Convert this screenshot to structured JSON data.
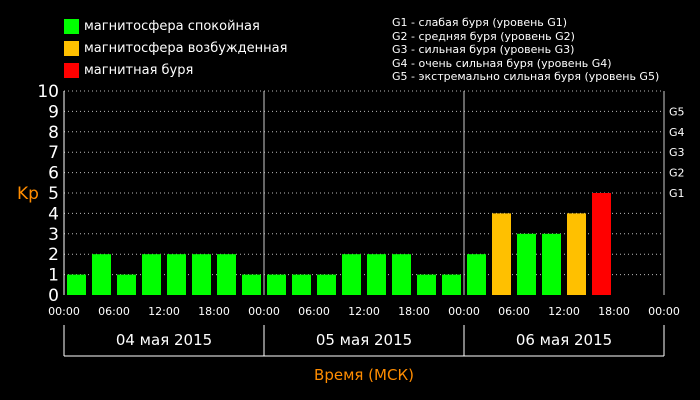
{
  "legend": [
    {
      "label": "магнитосфера спокойная",
      "color": "#00ff00"
    },
    {
      "label": "магнитосфера возбужденная",
      "color": "#ffc000"
    },
    {
      "label": "магнитная буря",
      "color": "#ff0000"
    }
  ],
  "storm_levels": [
    "G1 - слабая буря (уровень G1)",
    "G2 - средняя буря (уровень G2)",
    "G3 - сильная буря (уровень G3)",
    "G4 - очень сильная буря (уровень G4)",
    "G5 - экстремально сильная буря (уровень G5)"
  ],
  "colors": {
    "quiet": "#00ff00",
    "active": "#ffc000",
    "storm": "#ff0000",
    "axis_label": "#ff8c00",
    "background": "#000000",
    "foreground": "#ffffff"
  },
  "chart_data": {
    "type": "bar",
    "ylabel": "Kp",
    "xlabel": "Время (МСК)",
    "ylim": [
      0,
      10
    ],
    "yticks": [
      "0",
      "1",
      "2",
      "3",
      "4",
      "5",
      "6",
      "7",
      "8",
      "9",
      "10"
    ],
    "right_labels": [
      {
        "label": "G1",
        "value": 5
      },
      {
        "label": "G2",
        "value": 6
      },
      {
        "label": "G3",
        "value": 7
      },
      {
        "label": "G4",
        "value": 8
      },
      {
        "label": "G5",
        "value": 9
      }
    ],
    "time_labels": [
      "00:00",
      "06:00",
      "12:00",
      "18:00",
      "00:00",
      "06:00",
      "12:00",
      "18:00",
      "00:00",
      "06:00",
      "12:00",
      "18:00",
      "00:00"
    ],
    "dates": [
      "04 мая 2015",
      "05 мая 2015",
      "06 мая 2015"
    ],
    "slots_per_day": 8,
    "slots_total": 24,
    "bars": [
      {
        "value": 1,
        "level": "quiet"
      },
      {
        "value": 2,
        "level": "quiet"
      },
      {
        "value": 1,
        "level": "quiet"
      },
      {
        "value": 2,
        "level": "quiet"
      },
      {
        "value": 2,
        "level": "quiet"
      },
      {
        "value": 2,
        "level": "quiet"
      },
      {
        "value": 2,
        "level": "quiet"
      },
      {
        "value": 1,
        "level": "quiet"
      },
      {
        "value": 1,
        "level": "quiet"
      },
      {
        "value": 1,
        "level": "quiet"
      },
      {
        "value": 1,
        "level": "quiet"
      },
      {
        "value": 2,
        "level": "quiet"
      },
      {
        "value": 2,
        "level": "quiet"
      },
      {
        "value": 2,
        "level": "quiet"
      },
      {
        "value": 1,
        "level": "quiet"
      },
      {
        "value": 1,
        "level": "quiet"
      },
      {
        "value": 2,
        "level": "quiet"
      },
      {
        "value": 4,
        "level": "active"
      },
      {
        "value": 3,
        "level": "quiet"
      },
      {
        "value": 3,
        "level": "quiet"
      },
      {
        "value": 4,
        "level": "active"
      },
      {
        "value": 5,
        "level": "storm"
      }
    ]
  }
}
